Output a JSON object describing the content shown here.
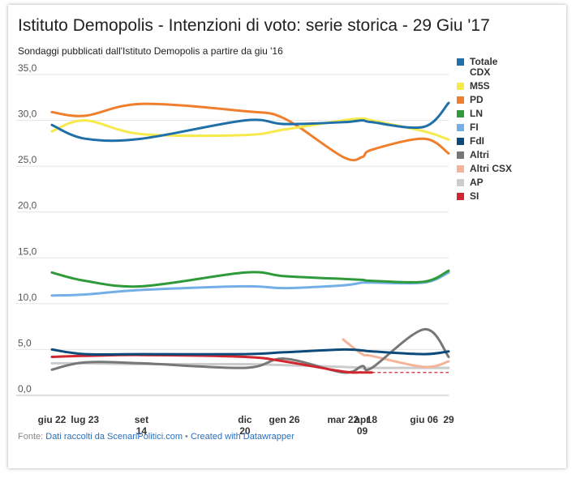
{
  "chart_data": {
    "type": "line",
    "title": "Istituto Demopolis - Intenzioni di voto: serie storica - 29 Giu '17",
    "subtitle": "Sondaggi pubblicati dall'Istituto Demopolis a partire da giu '16",
    "ylim": [
      0,
      35
    ],
    "y_ticks": [
      "35,0",
      "30,0",
      "25,0",
      "20,0",
      "15,0",
      "10,0",
      "5,0",
      "0,0"
    ],
    "y_tick_values": [
      35,
      30,
      25,
      20,
      15,
      10,
      5,
      0
    ],
    "x_ticks": [
      {
        "date": "2016-06-22",
        "label": [
          "giu 22"
        ]
      },
      {
        "date": "2016-07-23",
        "label": [
          "lug 23"
        ]
      },
      {
        "date": "2016-09-14",
        "label": [
          "set",
          "14"
        ]
      },
      {
        "date": "2016-12-20",
        "label": [
          "dic",
          "20"
        ]
      },
      {
        "date": "2017-01-26",
        "label": [
          "gen 26"
        ]
      },
      {
        "date": "2017-03-22",
        "label": [
          "mar 22"
        ]
      },
      {
        "date": "2017-04-09",
        "label": [
          "apr",
          "09"
        ]
      },
      {
        "date": "2017-04-18",
        "label": [
          "18"
        ]
      },
      {
        "date": "2017-06-06",
        "label": [
          "giu 06"
        ]
      },
      {
        "date": "2017-06-29",
        "label": [
          "29"
        ]
      }
    ],
    "grid": true,
    "legend_position": "right",
    "series": [
      {
        "name": "Totale CDX",
        "color": "#1f6fa8",
        "points": [
          [
            "2016-06-22",
            29.5
          ],
          [
            "2016-07-23",
            28
          ],
          [
            "2016-09-14",
            28
          ],
          [
            "2016-12-20",
            30
          ],
          [
            "2017-01-26",
            29.6
          ],
          [
            "2017-03-22",
            29.8
          ],
          [
            "2017-04-09",
            30
          ],
          [
            "2017-04-18",
            29.8
          ],
          [
            "2017-06-06",
            29.3
          ],
          [
            "2017-06-29",
            31.9
          ]
        ]
      },
      {
        "name": "M5S",
        "color": "#f6e94a",
        "points": [
          [
            "2016-06-22",
            28.8
          ],
          [
            "2016-07-23",
            30
          ],
          [
            "2016-09-14",
            28.5
          ],
          [
            "2016-12-20",
            28.4
          ],
          [
            "2017-01-26",
            29
          ],
          [
            "2017-03-22",
            30
          ],
          [
            "2017-04-09",
            30.2
          ],
          [
            "2017-04-18",
            30
          ],
          [
            "2017-06-06",
            28.8
          ],
          [
            "2017-06-29",
            27.9
          ]
        ]
      },
      {
        "name": "PD",
        "color": "#ef7f2c",
        "points": [
          [
            "2016-06-22",
            30.9
          ],
          [
            "2016-07-23",
            30.5
          ],
          [
            "2016-09-14",
            31.8
          ],
          [
            "2016-12-20",
            31
          ],
          [
            "2017-01-26",
            30.2
          ],
          [
            "2017-03-22",
            26
          ],
          [
            "2017-04-09",
            26
          ],
          [
            "2017-04-18",
            26.8
          ],
          [
            "2017-06-06",
            28
          ],
          [
            "2017-06-29",
            26.4
          ]
        ]
      },
      {
        "name": "LN",
        "color": "#2f9a3a",
        "points": [
          [
            "2016-06-22",
            13.4
          ],
          [
            "2016-07-23",
            12.5
          ],
          [
            "2016-09-14",
            11.9
          ],
          [
            "2016-12-20",
            13.4
          ],
          [
            "2017-01-26",
            13
          ],
          [
            "2017-03-22",
            12.7
          ],
          [
            "2017-04-09",
            12.6
          ],
          [
            "2017-04-18",
            12.5
          ],
          [
            "2017-06-06",
            12.4
          ],
          [
            "2017-06-29",
            13.6
          ]
        ]
      },
      {
        "name": "FI",
        "color": "#74aee6",
        "points": [
          [
            "2016-06-22",
            10.9
          ],
          [
            "2016-07-23",
            11
          ],
          [
            "2016-09-14",
            11.5
          ],
          [
            "2016-12-20",
            11.9
          ],
          [
            "2017-01-26",
            11.7
          ],
          [
            "2017-03-22",
            12
          ],
          [
            "2017-04-09",
            12.3
          ],
          [
            "2017-04-18",
            12.3
          ],
          [
            "2017-06-06",
            12.3
          ],
          [
            "2017-06-29",
            13.4
          ]
        ]
      },
      {
        "name": "FdI",
        "color": "#0d4a7a",
        "points": [
          [
            "2016-06-22",
            5
          ],
          [
            "2016-07-23",
            4.5
          ],
          [
            "2016-09-14",
            4.5
          ],
          [
            "2016-12-20",
            4.5
          ],
          [
            "2017-01-26",
            4.7
          ],
          [
            "2017-03-22",
            5
          ],
          [
            "2017-04-09",
            4.9
          ],
          [
            "2017-04-18",
            4.8
          ],
          [
            "2017-06-06",
            4.5
          ],
          [
            "2017-06-29",
            4.8
          ]
        ]
      },
      {
        "name": "Altri",
        "color": "#777777",
        "points": [
          [
            "2016-06-22",
            2.8
          ],
          [
            "2016-07-23",
            3.6
          ],
          [
            "2016-09-14",
            3.5
          ],
          [
            "2016-12-20",
            3
          ],
          [
            "2017-01-26",
            4
          ],
          [
            "2017-03-22",
            2.5
          ],
          [
            "2017-04-09",
            3.2
          ],
          [
            "2017-04-18",
            3
          ],
          [
            "2017-06-06",
            7.2
          ],
          [
            "2017-06-29",
            4.2
          ]
        ]
      },
      {
        "name": "Altri CSX",
        "color": "#f4b49b",
        "points": [
          [
            "2017-03-22",
            6.1
          ],
          [
            "2017-04-09",
            4.5
          ],
          [
            "2017-04-18",
            4.3
          ],
          [
            "2017-06-06",
            3.1
          ],
          [
            "2017-06-29",
            3.7
          ]
        ]
      },
      {
        "name": "AP",
        "color": "#cccccc",
        "points": [
          [
            "2016-06-22",
            3.5
          ],
          [
            "2016-07-23",
            3.5
          ],
          [
            "2016-09-14",
            3.4
          ],
          [
            "2016-12-20",
            3.4
          ],
          [
            "2017-01-26",
            3.3
          ],
          [
            "2017-03-22",
            3.1
          ],
          [
            "2017-04-09",
            3
          ],
          [
            "2017-04-18",
            3
          ],
          [
            "2017-06-06",
            3
          ],
          [
            "2017-06-29",
            3
          ]
        ]
      },
      {
        "name": "SI",
        "color": "#d0262f",
        "points": [
          [
            "2016-06-22",
            4.2
          ],
          [
            "2016-07-23",
            4.3
          ],
          [
            "2016-09-14",
            4.4
          ],
          [
            "2016-12-20",
            4.2
          ],
          [
            "2017-01-26",
            3.7
          ],
          [
            "2017-03-22",
            2.6
          ],
          [
            "2017-04-09",
            2.5
          ],
          [
            "2017-04-18",
            2.5
          ]
        ],
        "dashed_extension": [
          [
            "2017-04-18",
            2.5
          ],
          [
            "2017-06-29",
            2.5
          ]
        ]
      }
    ]
  },
  "footer": {
    "prefix": "Fonte: ",
    "source_link": "Dati raccolti da ScenariPolitici.com",
    "separator": " • ",
    "credit_link": "Created with Datawrapper"
  }
}
